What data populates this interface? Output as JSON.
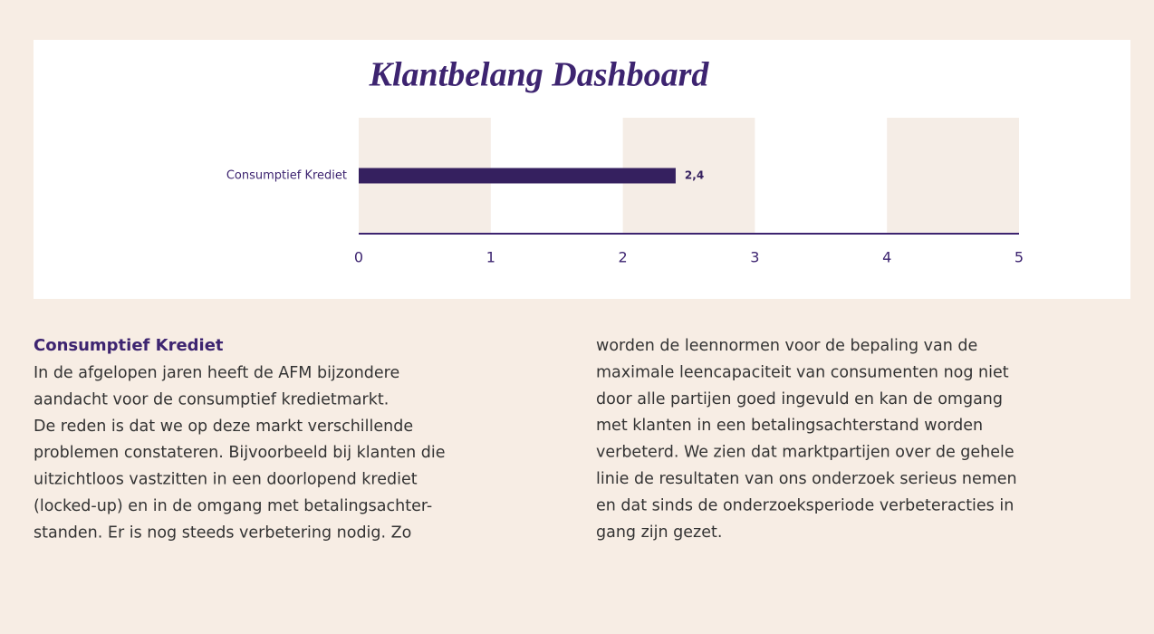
{
  "chart_data": {
    "type": "hbar",
    "title": "Klantbelang Dashboard",
    "categories": [
      "Consumptief Krediet"
    ],
    "values": [
      2.4
    ],
    "value_labels": [
      "2,4"
    ],
    "color": "#35205f",
    "band_color": "#f5ede6",
    "axis_color": "#3d2470",
    "xlim": [
      0,
      5
    ],
    "xticks": [
      0,
      1,
      2,
      3,
      4,
      5
    ],
    "bands": true
  },
  "article": {
    "heading": "Consumptief Krediet",
    "columns": [
      [
        "In de afgelopen jaren heeft de AFM bijzondere",
        "aandacht voor de consumptief kredietmarkt.",
        "De reden is dat we op deze markt verschillende",
        "problemen constateren. Bijvoorbeeld bij klanten die",
        "uitzichtloos vastzitten in een doorlopend krediet",
        "(locked-up) en in de omgang met betalingsachter-",
        "standen. Er is nog steeds verbetering nodig. Zo"
      ],
      [
        "worden de leennormen voor de bepaling van de",
        "maximale leencapaciteit van consumenten nog niet",
        "door alle partijen goed ingevuld en kan de omgang",
        "met klanten in een betalingsachterstand worden",
        "verbeterd. We zien dat marktpartijen over de gehele",
        "linie de resultaten van ons onderzoek serieus nemen",
        "en dat sinds de onderzoeksperiode verbeteracties in",
        "gang zijn gezet."
      ]
    ]
  }
}
